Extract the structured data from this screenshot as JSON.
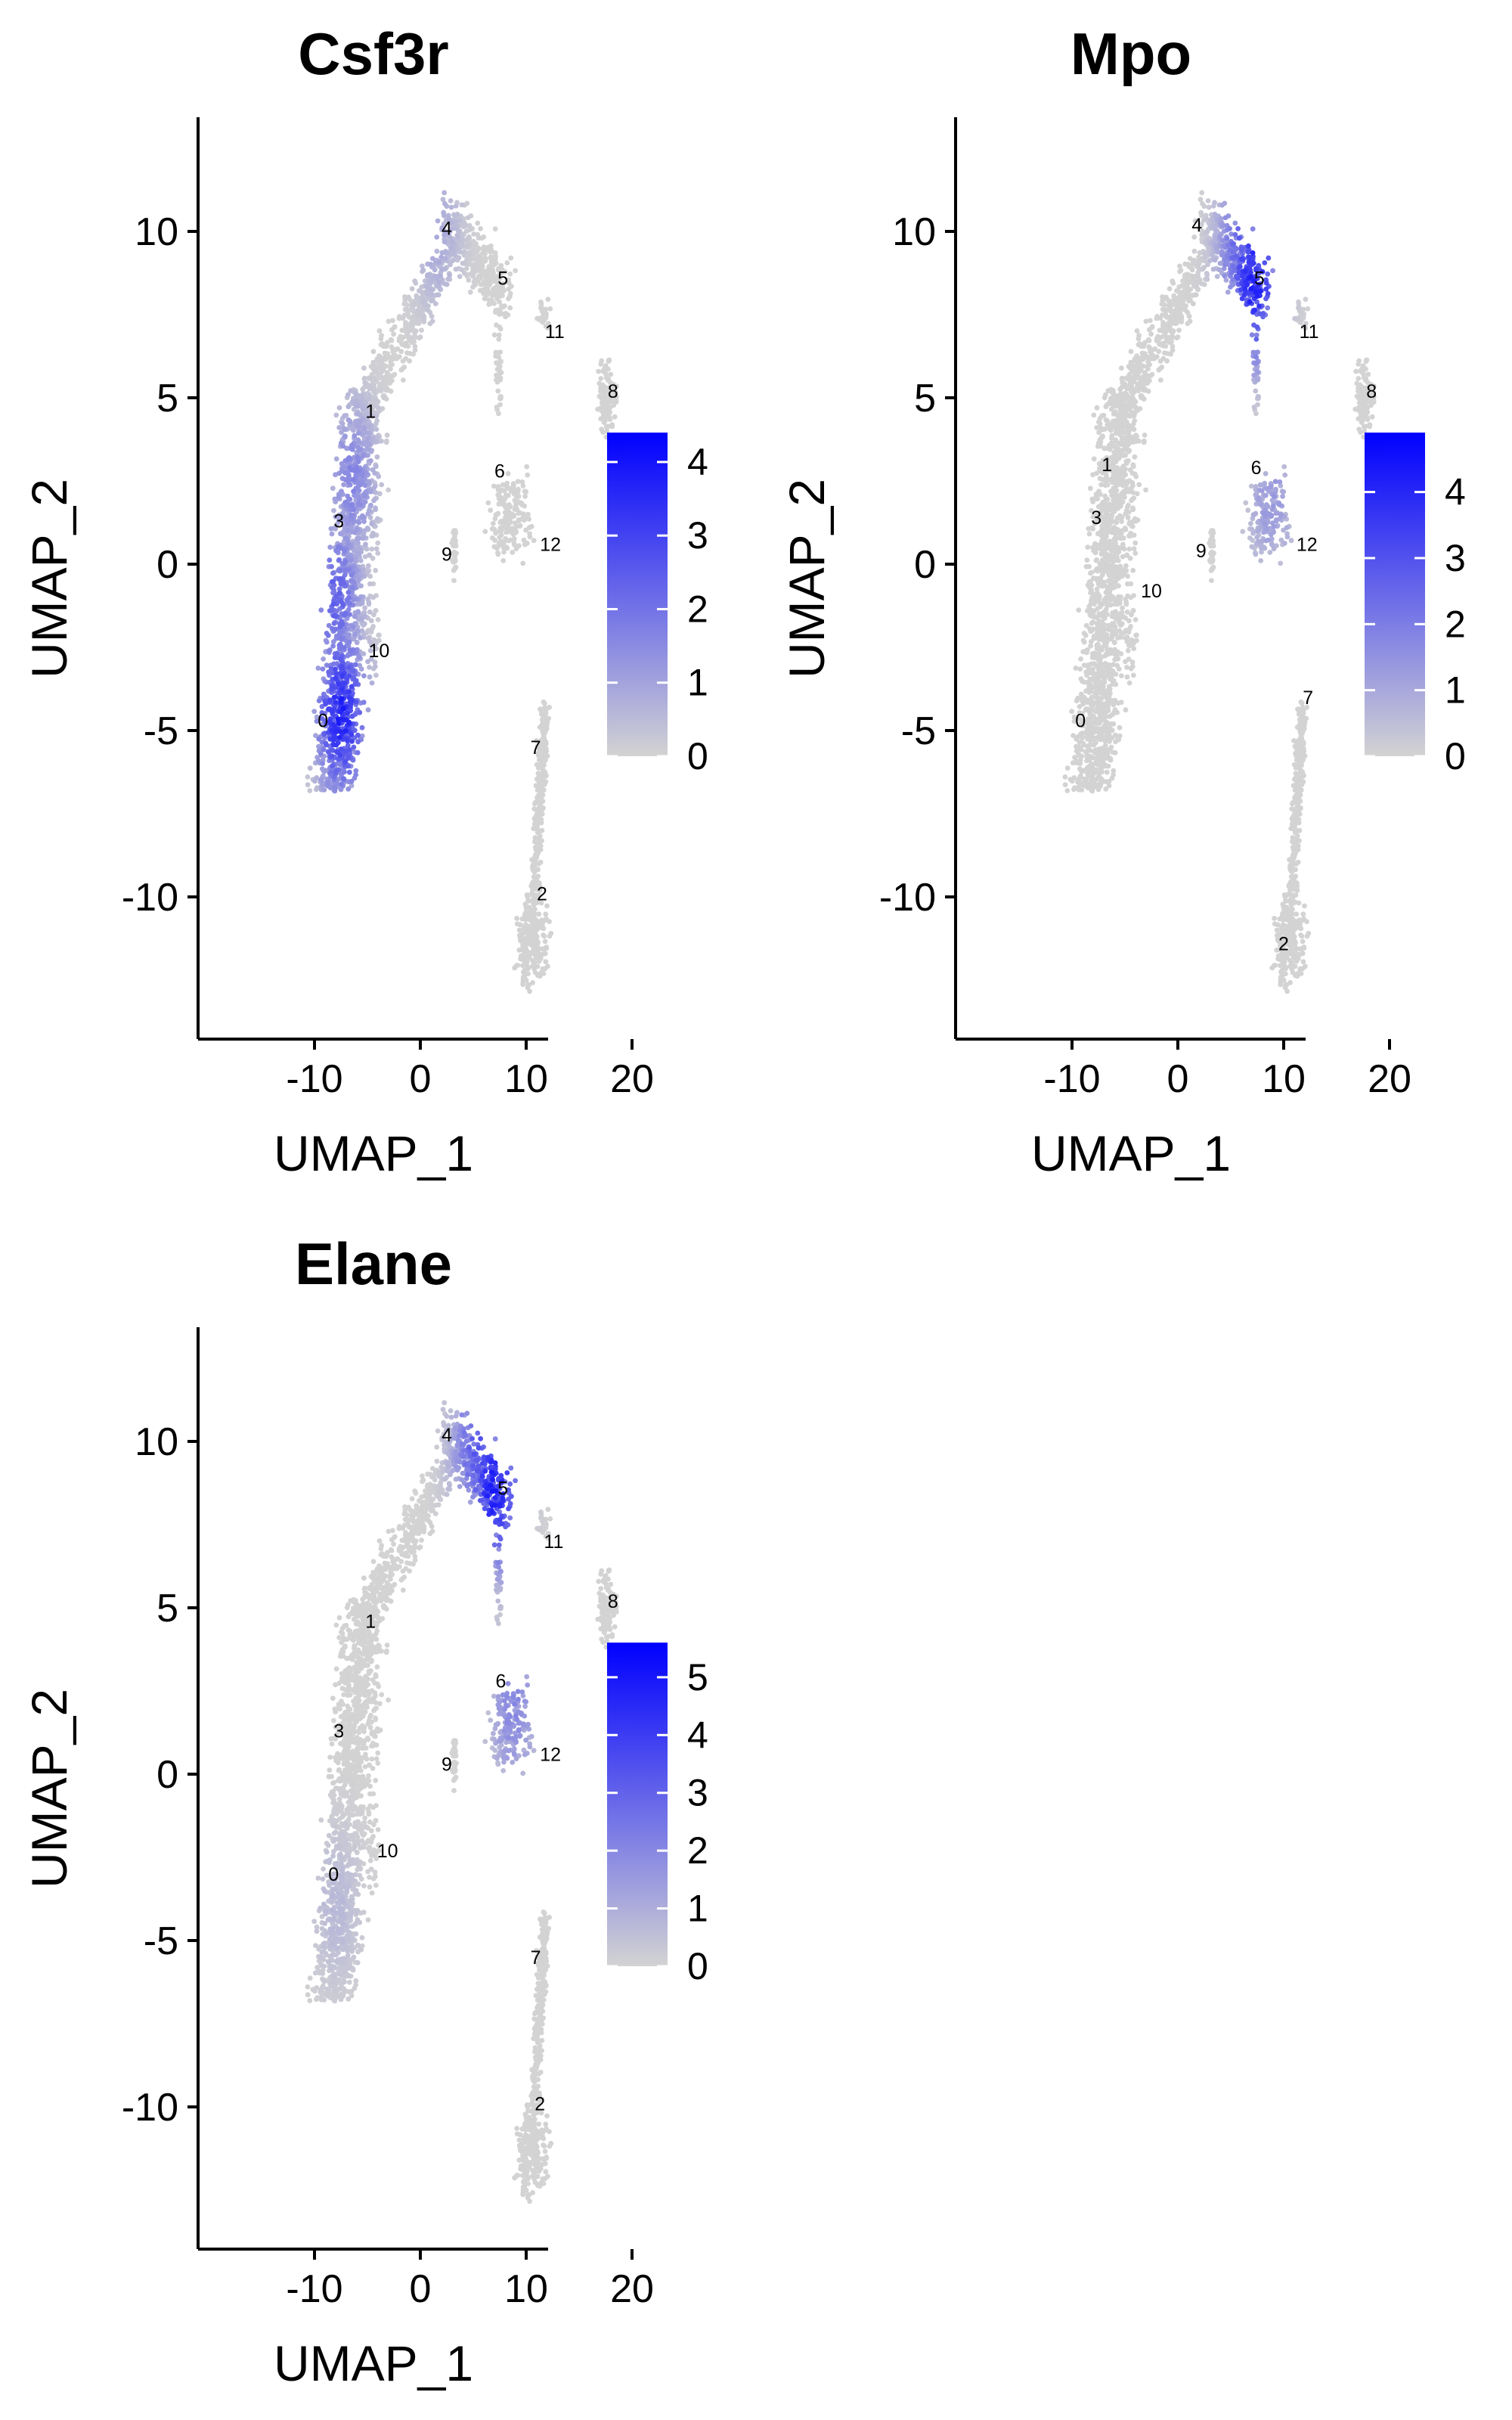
{
  "chart_data": [
    {
      "type": "scatter",
      "title": "Csf3r",
      "xlabel": "UMAP_1",
      "ylabel": "UMAP_2",
      "xlim": [
        -12.5,
        21
      ],
      "ylim": [
        -14,
        13.5
      ],
      "x_ticks": [
        -10,
        0,
        10,
        20
      ],
      "y_ticks": [
        -10,
        -5,
        0,
        5,
        10
      ],
      "color_scale": {
        "low": "#d3d3d3",
        "high": "#0000ff",
        "max": 4.4,
        "ticks": [
          0,
          1,
          2,
          3,
          4
        ]
      },
      "hotspots": [
        {
          "x": -7.5,
          "y": -4.5,
          "value": 4.0
        },
        {
          "x": -8.0,
          "y": -1.0,
          "value": 2.6
        },
        {
          "x": -6.5,
          "y": 2.5,
          "value": 1.8
        },
        {
          "x": 1.5,
          "y": 10.0,
          "value": 1.0
        }
      ],
      "cluster_labels": [
        {
          "label": "0",
          "x": -9.2,
          "y": -4.9
        },
        {
          "label": "1",
          "x": -4.7,
          "y": 4.4
        },
        {
          "label": "2",
          "x": 11.5,
          "y": -10.1
        },
        {
          "label": "3",
          "x": -7.7,
          "y": 1.1
        },
        {
          "label": "4",
          "x": 2.5,
          "y": 9.9
        },
        {
          "label": "5",
          "x": 7.8,
          "y": 8.4
        },
        {
          "label": "6",
          "x": 7.5,
          "y": 2.6
        },
        {
          "label": "7",
          "x": 10.9,
          "y": -5.7
        },
        {
          "label": "8",
          "x": 18.2,
          "y": 5.0
        },
        {
          "label": "9",
          "x": 2.5,
          "y": 0.1
        },
        {
          "label": "10",
          "x": -3.9,
          "y": -2.8
        },
        {
          "label": "11",
          "x": 12.7,
          "y": 6.8
        },
        {
          "label": "12",
          "x": 12.3,
          "y": 0.4
        }
      ]
    },
    {
      "type": "scatter",
      "title": "Mpo",
      "xlabel": "UMAP_1",
      "ylabel": "UMAP_2",
      "xlim": [
        -12.5,
        21
      ],
      "ylim": [
        -14,
        13.5
      ],
      "x_ticks": [
        -10,
        0,
        10,
        20
      ],
      "y_ticks": [
        -10,
        -5,
        0,
        5,
        10
      ],
      "color_scale": {
        "low": "#d3d3d3",
        "high": "#0000ff",
        "max": 4.9,
        "ticks": [
          0,
          1,
          2,
          3,
          4
        ]
      },
      "hotspots": [
        {
          "x": 7.3,
          "y": 8.5,
          "value": 4.6
        },
        {
          "x": 6.2,
          "y": 9.5,
          "value": 3.0
        },
        {
          "x": 8.8,
          "y": 2.0,
          "value": 1.5
        }
      ],
      "cluster_labels": [
        {
          "label": "0",
          "x": -9.2,
          "y": -4.9
        },
        {
          "label": "1",
          "x": -6.7,
          "y": 2.8
        },
        {
          "label": "2",
          "x": 10.0,
          "y": -11.6
        },
        {
          "label": "3",
          "x": -7.7,
          "y": 1.2
        },
        {
          "label": "4",
          "x": 1.8,
          "y": 10.0
        },
        {
          "label": "5",
          "x": 7.7,
          "y": 8.4
        },
        {
          "label": "6",
          "x": 7.4,
          "y": 2.7
        },
        {
          "label": "7",
          "x": 12.3,
          "y": -4.2
        },
        {
          "label": "8",
          "x": 18.3,
          "y": 5.0
        },
        {
          "label": "9",
          "x": 2.2,
          "y": 0.2
        },
        {
          "label": "10",
          "x": -2.5,
          "y": -1.0
        },
        {
          "label": "11",
          "x": 12.4,
          "y": 6.8
        },
        {
          "label": "12",
          "x": 12.2,
          "y": 0.4
        }
      ]
    },
    {
      "type": "scatter",
      "title": "Elane",
      "xlabel": "UMAP_1",
      "ylabel": "UMAP_2",
      "xlim": [
        -12.5,
        21
      ],
      "ylim": [
        -14,
        13.5
      ],
      "x_ticks": [
        -10,
        0,
        10,
        20
      ],
      "y_ticks": [
        -10,
        -5,
        0,
        5,
        10
      ],
      "color_scale": {
        "low": "#d3d3d3",
        "high": "#0000ff",
        "max": 5.6,
        "ticks": [
          0,
          1,
          2,
          3,
          4,
          5
        ]
      },
      "hotspots": [
        {
          "x": 7.0,
          "y": 8.6,
          "value": 5.2
        },
        {
          "x": 5.5,
          "y": 9.8,
          "value": 3.6
        },
        {
          "x": 8.8,
          "y": 1.9,
          "value": 2.2
        },
        {
          "x": -8.0,
          "y": -4.0,
          "value": 0.8
        }
      ],
      "cluster_labels": [
        {
          "label": "0",
          "x": -8.2,
          "y": -3.2
        },
        {
          "label": "1",
          "x": -4.7,
          "y": 4.4
        },
        {
          "label": "2",
          "x": 11.3,
          "y": -10.1
        },
        {
          "label": "3",
          "x": -7.7,
          "y": 1.1
        },
        {
          "label": "4",
          "x": 2.5,
          "y": 10.0
        },
        {
          "label": "5",
          "x": 7.8,
          "y": 8.4
        },
        {
          "label": "6",
          "x": 7.6,
          "y": 2.6
        },
        {
          "label": "7",
          "x": 10.9,
          "y": -5.7
        },
        {
          "label": "8",
          "x": 18.2,
          "y": 5.0
        },
        {
          "label": "9",
          "x": 2.5,
          "y": 0.1
        },
        {
          "label": "10",
          "x": -3.1,
          "y": -2.5
        },
        {
          "label": "11",
          "x": 12.6,
          "y": 6.8
        },
        {
          "label": "12",
          "x": 12.3,
          "y": 0.4
        }
      ]
    }
  ],
  "point_colors": {
    "low": "#d3d3d3",
    "high": "#0000ff"
  }
}
